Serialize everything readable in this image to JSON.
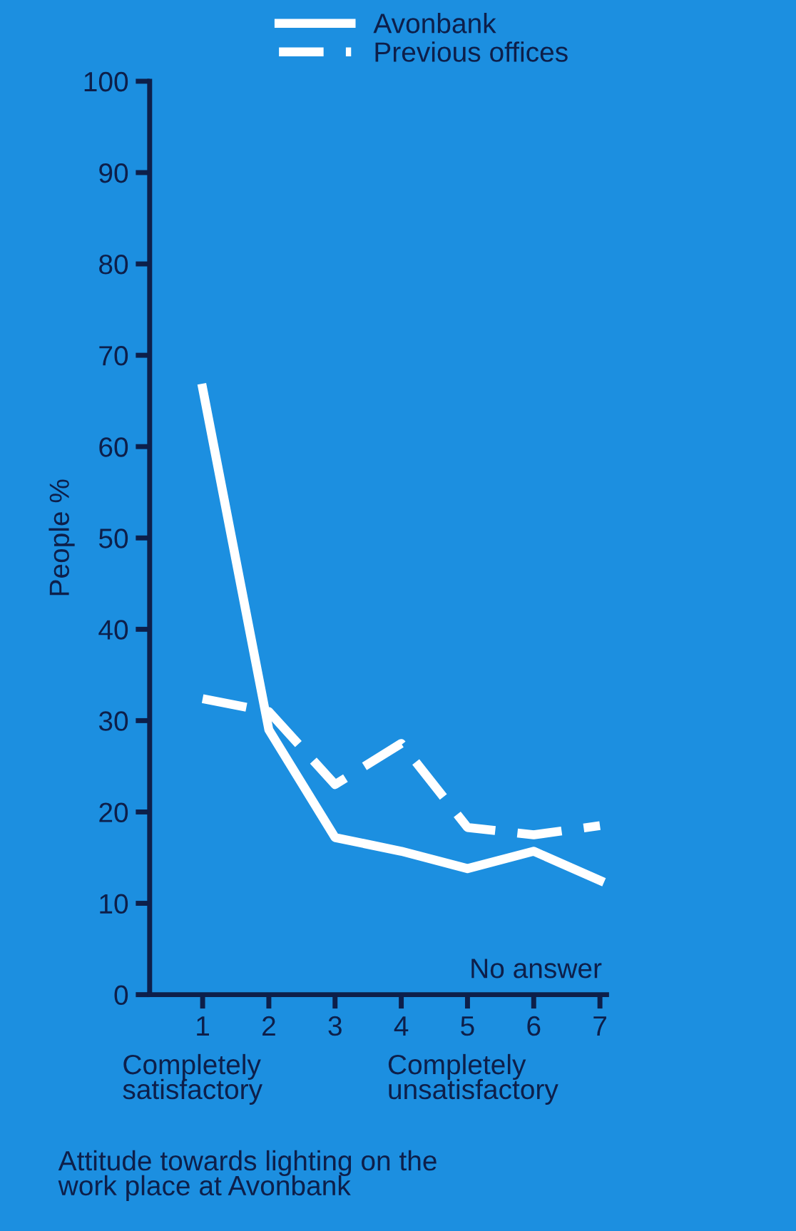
{
  "chart_data": {
    "type": "line",
    "x": [
      1,
      2,
      3,
      4,
      5,
      6,
      7
    ],
    "series": [
      {
        "name": "Avonbank",
        "color": "#ffffff",
        "line_style": "solid",
        "values": [
          66.4,
          29,
          17.2,
          15.7,
          13.8,
          15.7,
          12.5
        ]
      },
      {
        "name": "Previous offices",
        "color": "#ffffff",
        "line_style": "dashed",
        "values": [
          32.4,
          31,
          23,
          27.5,
          18.3,
          17.5,
          18.5
        ]
      }
    ],
    "ylabel": "People %",
    "xlabel": "Attitude towards lighting on the\nwork place at Avonbank",
    "annotations": [
      "No answer",
      "Completely\nsatisfactory",
      "Completely\nunsatisfactory"
    ],
    "xlim": [
      0.2,
      7.1
    ],
    "xticks": [
      1,
      2,
      3,
      4,
      5,
      6,
      7
    ],
    "ylim": [
      0,
      100
    ],
    "yticks": [
      0,
      10,
      20,
      30,
      40,
      50,
      60,
      70,
      80,
      90,
      100
    ],
    "grid": false,
    "legend": "top",
    "marker": "none"
  }
}
